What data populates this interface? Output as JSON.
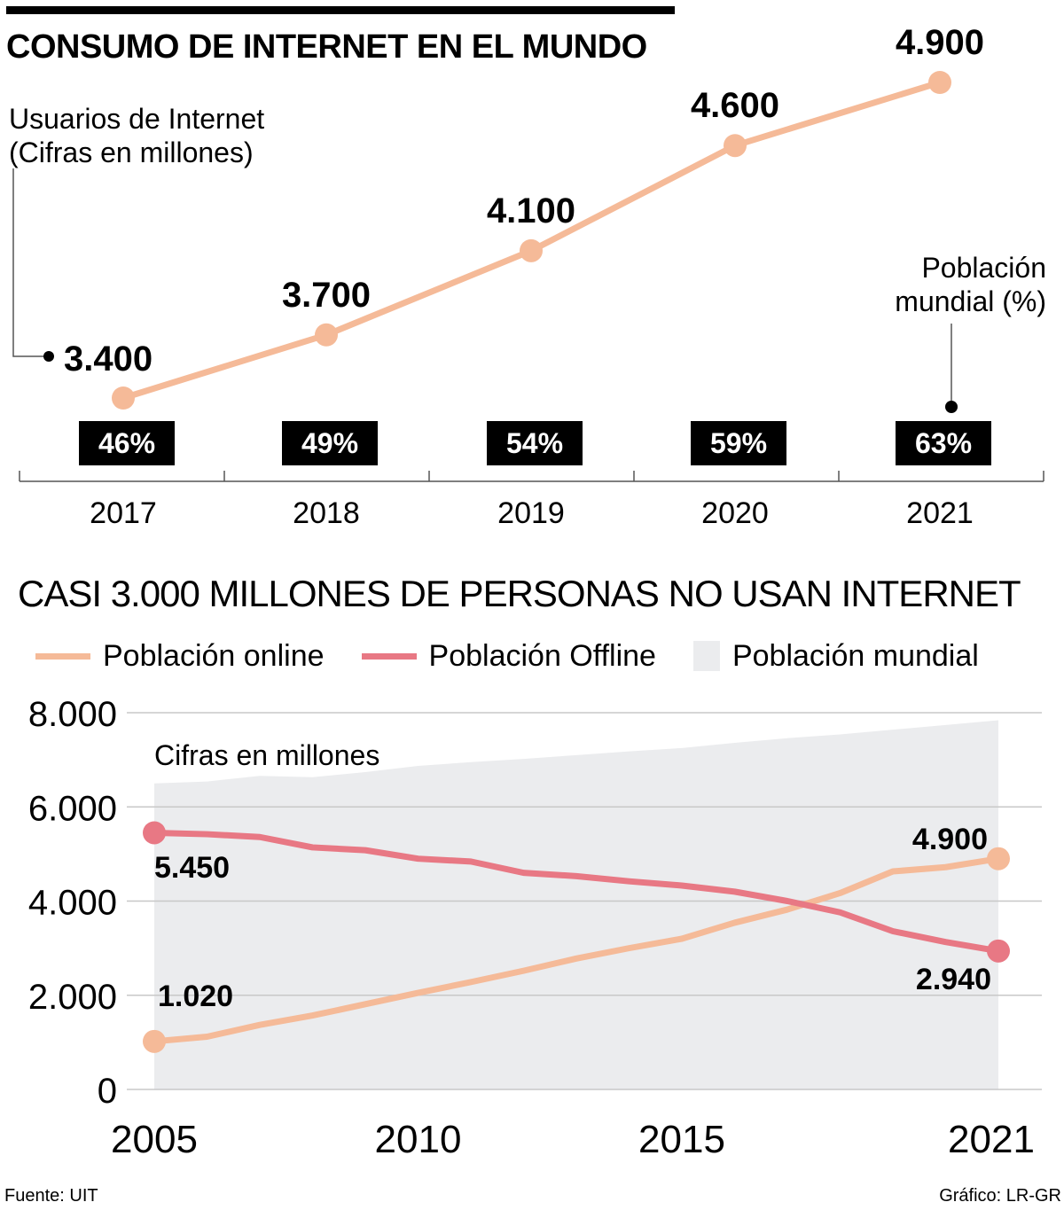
{
  "header": {
    "title": "CONSUMO DE INTERNET EN EL MUNDO"
  },
  "footer": {
    "source": "Fuente: UIT",
    "credit": "Gráfico: LR-GR"
  },
  "colors": {
    "online": "#F5BA98",
    "offline": "#E87884",
    "population": "#EBECEE",
    "grid": "#C8C8C8"
  },
  "chart_data": [
    {
      "type": "line",
      "title": "CONSUMO DE INTERNET EN EL MUNDO",
      "subtitle_line1": "Usuarios de Internet",
      "subtitle_line2": "(Cifras en millones)",
      "annotation_line1": "Población",
      "annotation_line2": "mundial (%)",
      "categories": [
        "2017",
        "2018",
        "2019",
        "2020",
        "2021"
      ],
      "values": [
        3400,
        3700,
        4100,
        4600,
        4900
      ],
      "value_labels": [
        "3.400",
        "3.700",
        "4.100",
        "4.600",
        "4.900"
      ],
      "percent_of_world_population": [
        46,
        49,
        54,
        59,
        63
      ],
      "percent_labels": [
        "46%",
        "49%",
        "54%",
        "59%",
        "63%"
      ],
      "xlabel": "",
      "ylabel": "",
      "grid": false
    },
    {
      "type": "line",
      "title": "CASI 3.000 MILLONES DE PERSONAS NO USAN INTERNET",
      "annotation": "Cifras en millones",
      "legend": [
        "Población online",
        "Población Offline",
        "Población mundial"
      ],
      "legend_position": "top",
      "x": [
        2005,
        2006,
        2007,
        2008,
        2009,
        2010,
        2011,
        2012,
        2013,
        2014,
        2015,
        2016,
        2017,
        2018,
        2019,
        2020,
        2021
      ],
      "x_tick_labels": [
        "2005",
        "2010",
        "2015",
        "2021"
      ],
      "x_ticks": [
        2005,
        2010,
        2015,
        2021
      ],
      "y_tick_labels": [
        "0",
        "2.000",
        "4.000",
        "6.000",
        "8.000"
      ],
      "y_ticks": [
        0,
        2000,
        4000,
        6000,
        8000
      ],
      "ylim": [
        0,
        8000
      ],
      "grid": true,
      "series": [
        {
          "name": "Población online",
          "type": "line",
          "values": [
            1020,
            1120,
            1370,
            1570,
            1810,
            2050,
            2280,
            2520,
            2780,
            3000,
            3200,
            3540,
            3820,
            4170,
            4630,
            4720,
            4900
          ]
        },
        {
          "name": "Población Offline",
          "type": "line",
          "values": [
            5450,
            5420,
            5360,
            5140,
            5080,
            4900,
            4840,
            4600,
            4530,
            4420,
            4330,
            4200,
            4000,
            3760,
            3360,
            3130,
            2940
          ]
        },
        {
          "name": "Población mundial",
          "type": "area",
          "values": [
            6500,
            6540,
            6660,
            6630,
            6740,
            6870,
            6950,
            7020,
            7100,
            7180,
            7250,
            7360,
            7460,
            7540,
            7640,
            7740,
            7840
          ]
        }
      ],
      "point_labels": [
        {
          "series": "Población online",
          "x": 2005,
          "label": "1.020"
        },
        {
          "series": "Población offline",
          "x": 2005,
          "label": "5.450"
        },
        {
          "series": "Población online",
          "x": 2021,
          "label": "4.900"
        },
        {
          "series": "Población offline",
          "x": 2021,
          "label": "2.940"
        }
      ]
    }
  ]
}
